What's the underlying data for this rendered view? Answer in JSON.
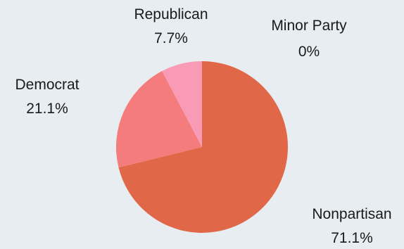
{
  "chart_data": {
    "type": "pie",
    "title": "",
    "start_angle_deg": 0,
    "direction": "clockwise",
    "slices": [
      {
        "label": "Nonpartisan",
        "value": 71.1,
        "value_label": "71.1%",
        "color": "#e06848"
      },
      {
        "label": "Democrat",
        "value": 21.1,
        "value_label": "21.1%",
        "color": "#f47c7c"
      },
      {
        "label": "Republican",
        "value": 7.7,
        "value_label": "7.7%",
        "color": "#f99bb6"
      },
      {
        "label": "Minor Party",
        "value": 0,
        "value_label": "0%",
        "color": "#fbb4c8"
      }
    ]
  },
  "colors": {
    "background": "#e8edf1",
    "text": "#1a1a1a"
  }
}
